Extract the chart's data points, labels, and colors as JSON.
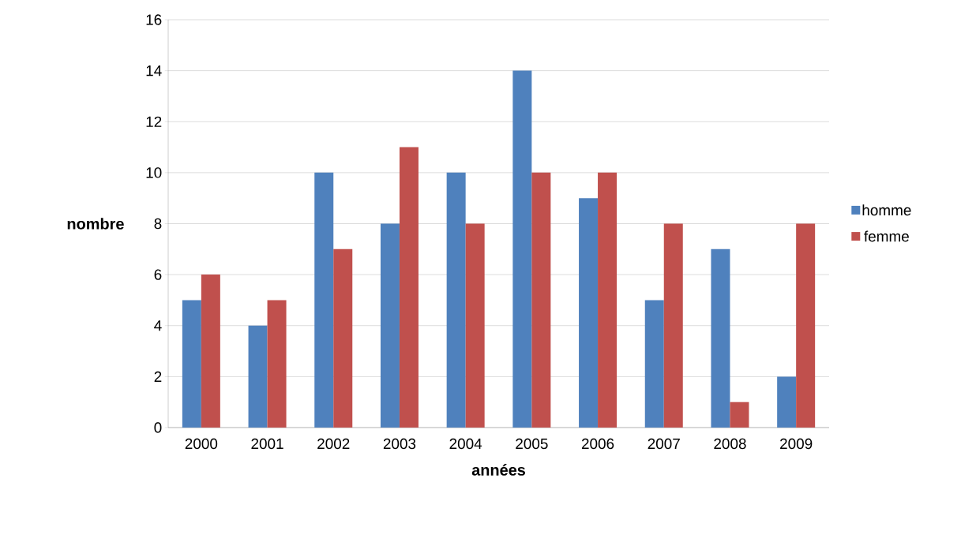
{
  "chart_data": {
    "type": "bar",
    "xlabel": "années",
    "ylabel": "nombre",
    "categories": [
      "2000",
      "2001",
      "2002",
      "2003",
      "2004",
      "2005",
      "2006",
      "2007",
      "2008",
      "2009"
    ],
    "series": [
      {
        "name": "homme",
        "color": "#4f81bd",
        "values": [
          5,
          4,
          10,
          8,
          10,
          14,
          9,
          5,
          7,
          2
        ]
      },
      {
        "name": "femme",
        "color": "#c0504d",
        "values": [
          6,
          5,
          7,
          11,
          8,
          10,
          10,
          8,
          1,
          8
        ]
      }
    ],
    "ylim": [
      0,
      16
    ],
    "yticks": [
      0,
      2,
      4,
      6,
      8,
      10,
      12,
      14,
      16
    ],
    "grid": "y",
    "legend": "right"
  }
}
